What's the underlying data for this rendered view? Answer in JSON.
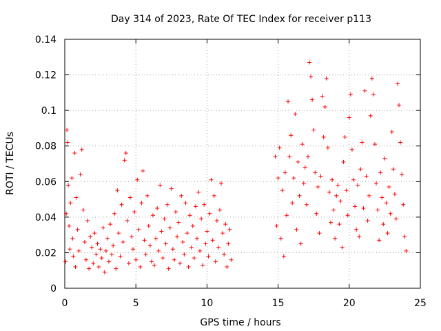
{
  "chart_data": {
    "type": "scatter",
    "title": "Day 314 of 2023, Rate Of TEC Index for receiver p113",
    "xlabel": "GPS time / hours",
    "ylabel": "ROTI / TECUs",
    "xlim": [
      0,
      25
    ],
    "ylim": [
      0,
      0.14
    ],
    "xticks": [
      0,
      5,
      10,
      15,
      20,
      25
    ],
    "yticks": [
      0,
      0.02,
      0.04,
      0.06,
      0.08,
      0.1,
      0.12,
      0.14
    ],
    "xtick_labels": [
      "0",
      "5",
      "10",
      "15",
      "20",
      "25"
    ],
    "ytick_labels": [
      "0",
      "0.02",
      "0.04",
      "0.06",
      "0.08",
      "0.1",
      "0.12",
      "0.14"
    ],
    "grid": true,
    "marker": "+",
    "series": [
      {
        "name": "ROTI",
        "color": "#ff0000",
        "points": [
          [
            0.05,
            0.015
          ],
          [
            0.1,
            0.042
          ],
          [
            0.15,
            0.089
          ],
          [
            0.2,
            0.082
          ],
          [
            0.25,
            0.058
          ],
          [
            0.3,
            0.035
          ],
          [
            0.35,
            0.022
          ],
          [
            0.4,
            0.048
          ],
          [
            0.5,
            0.062
          ],
          [
            0.55,
            0.028
          ],
          [
            0.6,
            0.018
          ],
          [
            0.7,
            0.076
          ],
          [
            0.75,
            0.012
          ],
          [
            0.8,
            0.051
          ],
          [
            0.9,
            0.033
          ],
          [
            1.0,
            0.021
          ],
          [
            1.1,
            0.064
          ],
          [
            1.2,
            0.078
          ],
          [
            1.3,
            0.044
          ],
          [
            1.4,
            0.026
          ],
          [
            1.5,
            0.016
          ],
          [
            1.6,
            0.038
          ],
          [
            1.7,
            0.011
          ],
          [
            1.8,
            0.029
          ],
          [
            1.9,
            0.023
          ],
          [
            2.0,
            0.014
          ],
          [
            2.1,
            0.031
          ],
          [
            2.2,
            0.019
          ],
          [
            2.3,
            0.025
          ],
          [
            2.4,
            0.012
          ],
          [
            2.5,
            0.022
          ],
          [
            2.6,
            0.017
          ],
          [
            2.7,
            0.034
          ],
          [
            2.8,
            0.009
          ],
          [
            2.9,
            0.021
          ],
          [
            3.0,
            0.028
          ],
          [
            3.1,
            0.015
          ],
          [
            3.2,
            0.036
          ],
          [
            3.3,
            0.019
          ],
          [
            3.4,
            0.024
          ],
          [
            3.5,
            0.042
          ],
          [
            3.6,
            0.011
          ],
          [
            3.7,
            0.055
          ],
          [
            3.8,
            0.031
          ],
          [
            3.9,
            0.018
          ],
          [
            4.0,
            0.047
          ],
          [
            4.1,
            0.026
          ],
          [
            4.2,
            0.072
          ],
          [
            4.3,
            0.076
          ],
          [
            4.4,
            0.038
          ],
          [
            4.5,
            0.014
          ],
          [
            4.6,
            0.051
          ],
          [
            4.7,
            0.029
          ],
          [
            4.8,
            0.022
          ],
          [
            4.9,
            0.043
          ],
          [
            5.0,
            0.016
          ],
          [
            5.1,
            0.061
          ],
          [
            5.2,
            0.033
          ],
          [
            5.3,
            0.012
          ],
          [
            5.4,
            0.048
          ],
          [
            5.5,
            0.066
          ],
          [
            5.6,
            0.027
          ],
          [
            5.7,
            0.019
          ],
          [
            5.8,
            0.052
          ],
          [
            5.9,
            0.035
          ],
          [
            6.0,
            0.024
          ],
          [
            6.1,
            0.015
          ],
          [
            6.2,
            0.041
          ],
          [
            6.3,
            0.013
          ],
          [
            6.4,
            0.028
          ],
          [
            6.5,
            0.045
          ],
          [
            6.6,
            0.021
          ],
          [
            6.7,
            0.058
          ],
          [
            6.8,
            0.032
          ],
          [
            6.9,
            0.017
          ],
          [
            7.0,
            0.039
          ],
          [
            7.1,
            0.025
          ],
          [
            7.2,
            0.047
          ],
          [
            7.3,
            0.011
          ],
          [
            7.4,
            0.034
          ],
          [
            7.5,
            0.056
          ],
          [
            7.6,
            0.022
          ],
          [
            7.7,
            0.016
          ],
          [
            7.8,
            0.043
          ],
          [
            7.9,
            0.029
          ],
          [
            8.0,
            0.037
          ],
          [
            8.1,
            0.014
          ],
          [
            8.2,
            0.052
          ],
          [
            8.3,
            0.026
          ],
          [
            8.4,
            0.019
          ],
          [
            8.5,
            0.048
          ],
          [
            8.6,
            0.031
          ],
          [
            8.7,
            0.012
          ],
          [
            8.8,
            0.041
          ],
          [
            8.9,
            0.023
          ],
          [
            9.0,
            0.035
          ],
          [
            9.1,
            0.017
          ],
          [
            9.2,
            0.046
          ],
          [
            9.3,
            0.028
          ],
          [
            9.4,
            0.054
          ],
          [
            9.5,
            0.021
          ],
          [
            9.6,
            0.039
          ],
          [
            9.7,
            0.013
          ],
          [
            9.8,
            0.047
          ],
          [
            9.9,
            0.025
          ],
          [
            10.0,
            0.032
          ],
          [
            10.1,
            0.018
          ],
          [
            10.2,
            0.042
          ],
          [
            10.3,
            0.061
          ],
          [
            10.4,
            0.027
          ],
          [
            10.5,
            0.052
          ],
          [
            10.6,
            0.015
          ],
          [
            10.7,
            0.038
          ],
          [
            10.8,
            0.023
          ],
          [
            10.9,
            0.044
          ],
          [
            11.0,
            0.059
          ],
          [
            11.1,
            0.031
          ],
          [
            11.2,
            0.019
          ],
          [
            11.3,
            0.036
          ],
          [
            11.4,
            0.012
          ],
          [
            11.5,
            0.025
          ],
          [
            11.6,
            0.033
          ],
          [
            11.7,
            0.016
          ],
          [
            14.8,
            0.074
          ],
          [
            14.9,
            0.035
          ],
          [
            15.0,
            0.062
          ],
          [
            15.1,
            0.079
          ],
          [
            15.2,
            0.028
          ],
          [
            15.3,
            0.055
          ],
          [
            15.4,
            0.018
          ],
          [
            15.5,
            0.065
          ],
          [
            15.6,
            0.041
          ],
          [
            15.7,
            0.105
          ],
          [
            15.8,
            0.074
          ],
          [
            15.9,
            0.086
          ],
          [
            16.0,
            0.048
          ],
          [
            16.1,
            0.062
          ],
          [
            16.2,
            0.098
          ],
          [
            16.3,
            0.033
          ],
          [
            16.4,
            0.071
          ],
          [
            16.5,
            0.052
          ],
          [
            16.6,
            0.025
          ],
          [
            16.7,
            0.081
          ],
          [
            16.8,
            0.059
          ],
          [
            16.9,
            0.068
          ],
          [
            17.0,
            0.047
          ],
          [
            17.1,
            0.074
          ],
          [
            17.2,
            0.127
          ],
          [
            17.3,
            0.119
          ],
          [
            17.4,
            0.106
          ],
          [
            17.5,
            0.089
          ],
          [
            17.6,
            0.065
          ],
          [
            17.7,
            0.042
          ],
          [
            17.8,
            0.057
          ],
          [
            17.9,
            0.031
          ],
          [
            18.0,
            0.063
          ],
          [
            18.1,
            0.108
          ],
          [
            18.2,
            0.085
          ],
          [
            18.3,
            0.102
          ],
          [
            18.4,
            0.118
          ],
          [
            18.5,
            0.079
          ],
          [
            18.6,
            0.054
          ],
          [
            18.7,
            0.037
          ],
          [
            18.8,
            0.061
          ],
          [
            18.9,
            0.044
          ],
          [
            19.0,
            0.028
          ],
          [
            19.1,
            0.052
          ],
          [
            19.2,
            0.058
          ],
          [
            19.3,
            0.036
          ],
          [
            19.4,
            0.049
          ],
          [
            19.5,
            0.023
          ],
          [
            19.6,
            0.071
          ],
          [
            19.7,
            0.085
          ],
          [
            19.8,
            0.055
          ],
          [
            19.9,
            0.041
          ],
          [
            20.0,
            0.096
          ],
          [
            20.1,
            0.109
          ],
          [
            20.2,
            0.078
          ],
          [
            20.3,
            0.061
          ],
          [
            20.4,
            0.046
          ],
          [
            20.5,
            0.033
          ],
          [
            20.6,
            0.058
          ],
          [
            20.7,
            0.029
          ],
          [
            20.8,
            0.067
          ],
          [
            20.9,
            0.082
          ],
          [
            21.0,
            0.045
          ],
          [
            21.1,
            0.111
          ],
          [
            21.2,
            0.063
          ],
          [
            21.3,
            0.038
          ],
          [
            21.4,
            0.052
          ],
          [
            21.5,
            0.097
          ],
          [
            21.6,
            0.118
          ],
          [
            21.7,
            0.109
          ],
          [
            21.8,
            0.081
          ],
          [
            21.9,
            0.059
          ],
          [
            22.0,
            0.044
          ],
          [
            22.1,
            0.027
          ],
          [
            22.2,
            0.065
          ],
          [
            22.3,
            0.051
          ],
          [
            22.4,
            0.036
          ],
          [
            22.5,
            0.073
          ],
          [
            22.6,
            0.048
          ],
          [
            22.7,
            0.031
          ],
          [
            22.8,
            0.057
          ],
          [
            22.9,
            0.042
          ],
          [
            23.0,
            0.088
          ],
          [
            23.1,
            0.067
          ],
          [
            23.2,
            0.053
          ],
          [
            23.3,
            0.039
          ],
          [
            23.4,
            0.115
          ],
          [
            23.5,
            0.103
          ],
          [
            23.6,
            0.082
          ],
          [
            23.7,
            0.064
          ],
          [
            23.8,
            0.047
          ],
          [
            23.9,
            0.029
          ],
          [
            24.0,
            0.021
          ]
        ]
      }
    ]
  }
}
